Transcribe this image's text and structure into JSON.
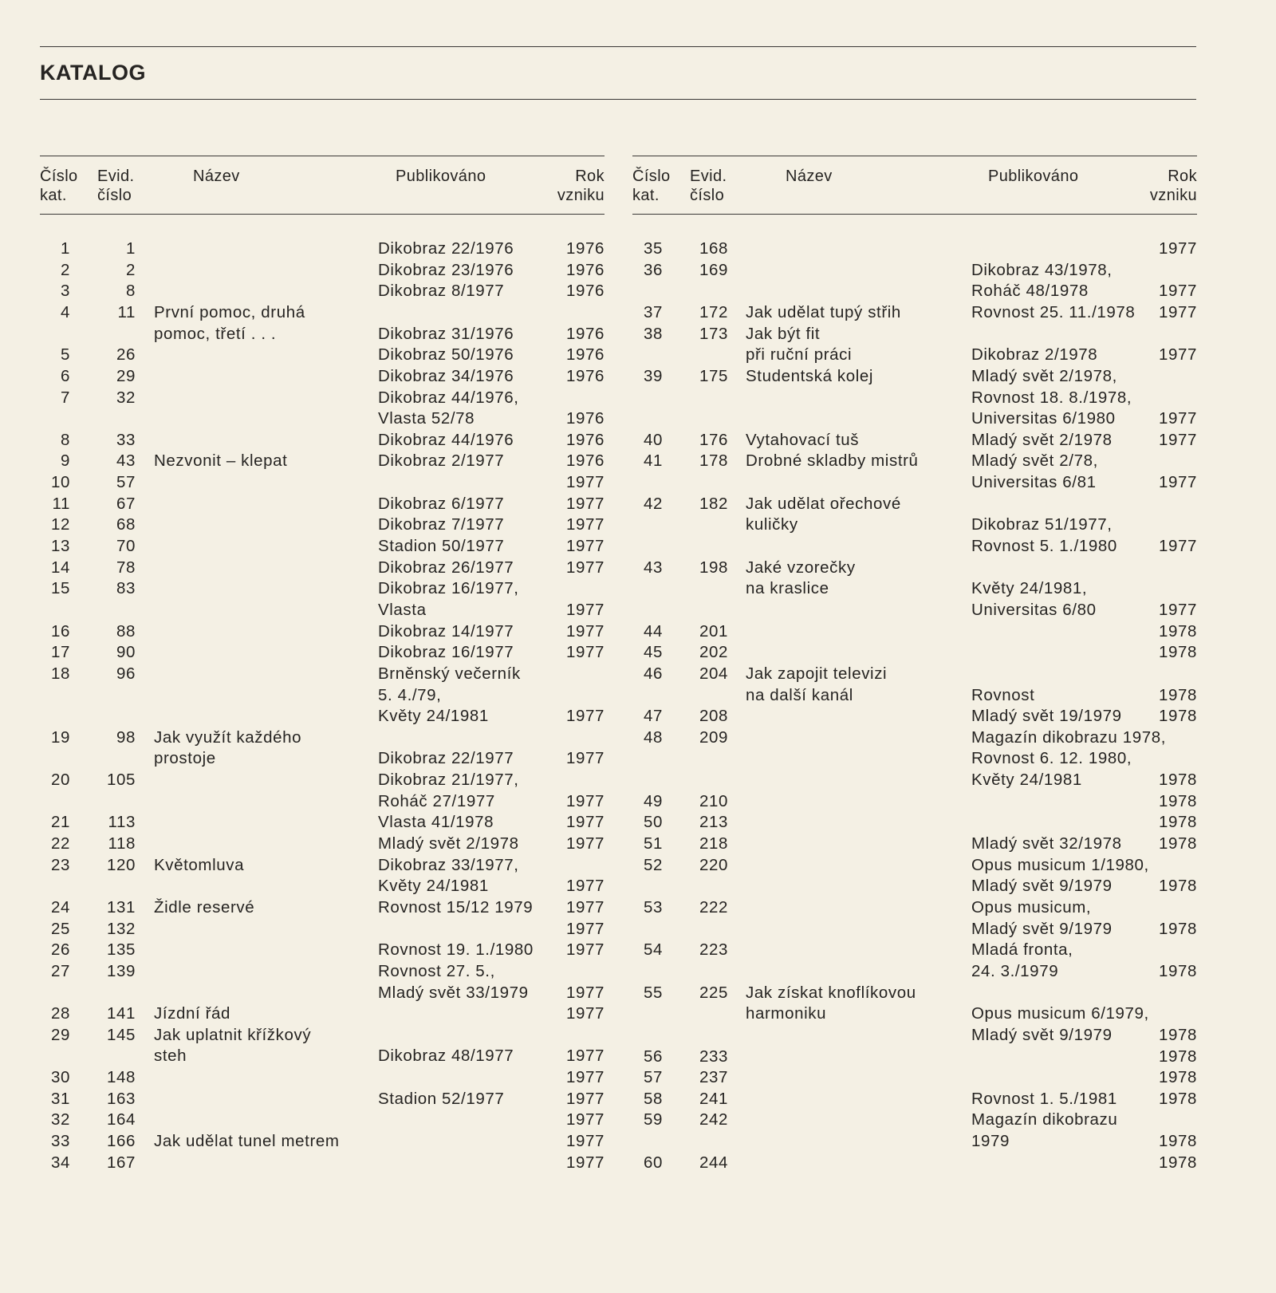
{
  "heading": "KATALOG",
  "columns": [
    [
      "Číslo",
      "kat."
    ],
    [
      "Evid.",
      "číslo"
    ],
    [
      "Název"
    ],
    [
      "Publikováno"
    ],
    [
      "Rok",
      "vzniku"
    ]
  ],
  "tables": [
    {
      "rows": [
        {
          "num": "1",
          "evid": "1",
          "title": [],
          "pub": [
            "Dikobraz 22/1976"
          ],
          "year": "1976"
        },
        {
          "num": "2",
          "evid": "2",
          "title": [],
          "pub": [
            "Dikobraz 23/1976"
          ],
          "year": "1976"
        },
        {
          "num": "3",
          "evid": "8",
          "title": [],
          "pub": [
            "Dikobraz 8/1977"
          ],
          "year": "1976"
        },
        {
          "num": "4",
          "evid": "11",
          "title": [
            "První pomoc, druhá",
            "pomoc, třetí . . ."
          ],
          "pub": [
            "",
            "Dikobraz 31/1976"
          ],
          "year": "1976"
        },
        {
          "num": "5",
          "evid": "26",
          "title": [],
          "pub": [
            "Dikobraz 50/1976"
          ],
          "year": "1976"
        },
        {
          "num": "6",
          "evid": "29",
          "title": [],
          "pub": [
            "Dikobraz 34/1976"
          ],
          "year": "1976"
        },
        {
          "num": "7",
          "evid": "32",
          "title": [],
          "pub": [
            "Dikobraz 44/1976,",
            "Vlasta 52/78"
          ],
          "year": "1976"
        },
        {
          "num": "8",
          "evid": "33",
          "title": [],
          "pub": [
            "Dikobraz 44/1976"
          ],
          "year": "1976"
        },
        {
          "num": "9",
          "evid": "43",
          "title": [
            "Nezvonit – klepat"
          ],
          "pub": [
            "Dikobraz 2/1977"
          ],
          "year": "1976"
        },
        {
          "num": "10",
          "evid": "57",
          "title": [],
          "pub": [],
          "year": "1977"
        },
        {
          "num": "11",
          "evid": "67",
          "title": [],
          "pub": [
            "Dikobraz 6/1977"
          ],
          "year": "1977"
        },
        {
          "num": "12",
          "evid": "68",
          "title": [],
          "pub": [
            "Dikobraz 7/1977"
          ],
          "year": "1977"
        },
        {
          "num": "13",
          "evid": "70",
          "title": [],
          "pub": [
            "Stadion 50/1977"
          ],
          "year": "1977"
        },
        {
          "num": "14",
          "evid": "78",
          "title": [],
          "pub": [
            "Dikobraz 26/1977"
          ],
          "year": "1977"
        },
        {
          "num": "15",
          "evid": "83",
          "title": [],
          "pub": [
            "Dikobraz 16/1977,",
            "Vlasta"
          ],
          "year": "1977"
        },
        {
          "num": "16",
          "evid": "88",
          "title": [],
          "pub": [
            "Dikobraz 14/1977"
          ],
          "year": "1977"
        },
        {
          "num": "17",
          "evid": "90",
          "title": [],
          "pub": [
            "Dikobraz 16/1977"
          ],
          "year": "1977"
        },
        {
          "num": "18",
          "evid": "96",
          "title": [],
          "pub": [
            "Brněnský večerník",
            "5. 4./79,",
            "Květy 24/1981"
          ],
          "year": "1977"
        },
        {
          "num": "19",
          "evid": "98",
          "title": [
            "Jak využít každého",
            "prostoje"
          ],
          "pub": [
            "",
            "Dikobraz 22/1977"
          ],
          "year": "1977"
        },
        {
          "num": "20",
          "evid": "105",
          "title": [],
          "pub": [
            "Dikobraz 21/1977,",
            "Roháč 27/1977"
          ],
          "year": "1977"
        },
        {
          "num": "21",
          "evid": "113",
          "title": [],
          "pub": [
            "Vlasta 41/1978"
          ],
          "year": "1977"
        },
        {
          "num": "22",
          "evid": "118",
          "title": [],
          "pub": [
            "Mladý svět 2/1978"
          ],
          "year": "1977"
        },
        {
          "num": "23",
          "evid": "120",
          "title": [
            "Květomluva"
          ],
          "pub": [
            "Dikobraz 33/1977,",
            "Květy 24/1981"
          ],
          "year": "1977"
        },
        {
          "num": "24",
          "evid": "131",
          "title": [
            "Židle reservé"
          ],
          "pub": [
            "Rovnost 15/12 1979"
          ],
          "year": "1977"
        },
        {
          "num": "25",
          "evid": "132",
          "title": [],
          "pub": [],
          "year": "1977"
        },
        {
          "num": "26",
          "evid": "135",
          "title": [],
          "pub": [
            "Rovnost 19. 1./1980"
          ],
          "year": "1977"
        },
        {
          "num": "27",
          "evid": "139",
          "title": [],
          "pub": [
            "Rovnost 27. 5.,",
            "Mladý svět 33/1979"
          ],
          "year": "1977"
        },
        {
          "num": "28",
          "evid": "141",
          "title": [
            "Jízdní řád"
          ],
          "pub": [],
          "year": "1977"
        },
        {
          "num": "29",
          "evid": "145",
          "title": [
            "Jak uplatnit křížkový",
            "steh"
          ],
          "pub": [
            "",
            "Dikobraz 48/1977"
          ],
          "year": "1977"
        },
        {
          "num": "30",
          "evid": "148",
          "title": [],
          "pub": [],
          "year": "1977"
        },
        {
          "num": "31",
          "evid": "163",
          "title": [],
          "pub": [
            "Stadion 52/1977"
          ],
          "year": "1977"
        },
        {
          "num": "32",
          "evid": "164",
          "title": [],
          "pub": [],
          "year": "1977"
        },
        {
          "num": "33",
          "evid": "166",
          "title": [
            "Jak udělat tunel metrem"
          ],
          "pub": [],
          "year": "1977"
        },
        {
          "num": "34",
          "evid": "167",
          "title": [],
          "pub": [],
          "year": "1977"
        }
      ]
    },
    {
      "rows": [
        {
          "num": "35",
          "evid": "168",
          "title": [],
          "pub": [],
          "year": "1977"
        },
        {
          "num": "36",
          "evid": "169",
          "title": [],
          "pub": [
            "Dikobraz 43/1978,",
            "Roháč 48/1978"
          ],
          "year": "1977"
        },
        {
          "num": "37",
          "evid": "172",
          "title": [
            "Jak udělat tupý střih"
          ],
          "pub": [
            "Rovnost 25. 11./1978"
          ],
          "year": "1977"
        },
        {
          "num": "38",
          "evid": "173",
          "title": [
            "Jak být fit",
            "při ruční práci"
          ],
          "pub": [
            "",
            "Dikobraz 2/1978"
          ],
          "year": "1977"
        },
        {
          "num": "39",
          "evid": "175",
          "title": [
            "Studentská kolej"
          ],
          "pub": [
            "Mladý svět 2/1978,",
            "Rovnost 18. 8./1978,",
            "Universitas 6/1980"
          ],
          "year": "1977"
        },
        {
          "num": "40",
          "evid": "176",
          "title": [
            "Vytahovací tuš"
          ],
          "pub": [
            "Mladý svět 2/1978"
          ],
          "year": "1977"
        },
        {
          "num": "41",
          "evid": "178",
          "title": [
            "Drobné skladby mistrů"
          ],
          "pub": [
            "Mladý svět 2/78,",
            "Universitas 6/81"
          ],
          "year": "1977"
        },
        {
          "num": "42",
          "evid": "182",
          "title": [
            "Jak udělat ořechové",
            "kuličky"
          ],
          "pub": [
            "",
            "Dikobraz 51/1977,",
            "Rovnost 5. 1./1980"
          ],
          "year": "1977"
        },
        {
          "num": "43",
          "evid": "198",
          "title": [
            "Jaké vzorečky",
            "na kraslice"
          ],
          "pub": [
            "",
            "Květy 24/1981,",
            "Universitas 6/80"
          ],
          "year": "1977"
        },
        {
          "num": "44",
          "evid": "201",
          "title": [],
          "pub": [],
          "year": "1978"
        },
        {
          "num": "45",
          "evid": "202",
          "title": [],
          "pub": [],
          "year": "1978"
        },
        {
          "num": "46",
          "evid": "204",
          "title": [
            "Jak zapojit televizi",
            "na další kanál"
          ],
          "pub": [
            "",
            "Rovnost"
          ],
          "year": "1978"
        },
        {
          "num": "47",
          "evid": "208",
          "title": [],
          "pub": [
            "Mladý svět 19/1979"
          ],
          "year": "1978"
        },
        {
          "num": "48",
          "evid": "209",
          "title": [],
          "pub": [
            "Magazín dikobrazu 1978,",
            "Rovnost 6. 12. 1980,",
            "Květy 24/1981"
          ],
          "year": "1978"
        },
        {
          "num": "49",
          "evid": "210",
          "title": [],
          "pub": [],
          "year": "1978"
        },
        {
          "num": "50",
          "evid": "213",
          "title": [],
          "pub": [],
          "year": "1978"
        },
        {
          "num": "51",
          "evid": "218",
          "title": [],
          "pub": [
            "Mladý svět 32/1978"
          ],
          "year": "1978"
        },
        {
          "num": "52",
          "evid": "220",
          "title": [],
          "pub": [
            "Opus musicum 1/1980,",
            "Mladý svět 9/1979"
          ],
          "year": "1978"
        },
        {
          "num": "53",
          "evid": "222",
          "title": [],
          "pub": [
            "Opus musicum,",
            "Mladý svět 9/1979"
          ],
          "year": "1978"
        },
        {
          "num": "54",
          "evid": "223",
          "title": [],
          "pub": [
            "Mladá fronta,",
            "24. 3./1979"
          ],
          "year": "1978"
        },
        {
          "num": "55",
          "evid": "225",
          "title": [
            "Jak získat knoflíkovou",
            "harmoniku"
          ],
          "pub": [
            "",
            "Opus musicum 6/1979,",
            "Mladý svět 9/1979"
          ],
          "year": "1978"
        },
        {
          "num": "56",
          "evid": "233",
          "title": [],
          "pub": [],
          "year": "1978"
        },
        {
          "num": "57",
          "evid": "237",
          "title": [],
          "pub": [],
          "year": "1978"
        },
        {
          "num": "58",
          "evid": "241",
          "title": [],
          "pub": [
            "Rovnost 1. 5./1981"
          ],
          "year": "1978"
        },
        {
          "num": "59",
          "evid": "242",
          "title": [],
          "pub": [
            "Magazín dikobrazu",
            "1979"
          ],
          "year": "1978"
        },
        {
          "num": "60",
          "evid": "244",
          "title": [],
          "pub": [],
          "year": "1978"
        }
      ]
    }
  ]
}
